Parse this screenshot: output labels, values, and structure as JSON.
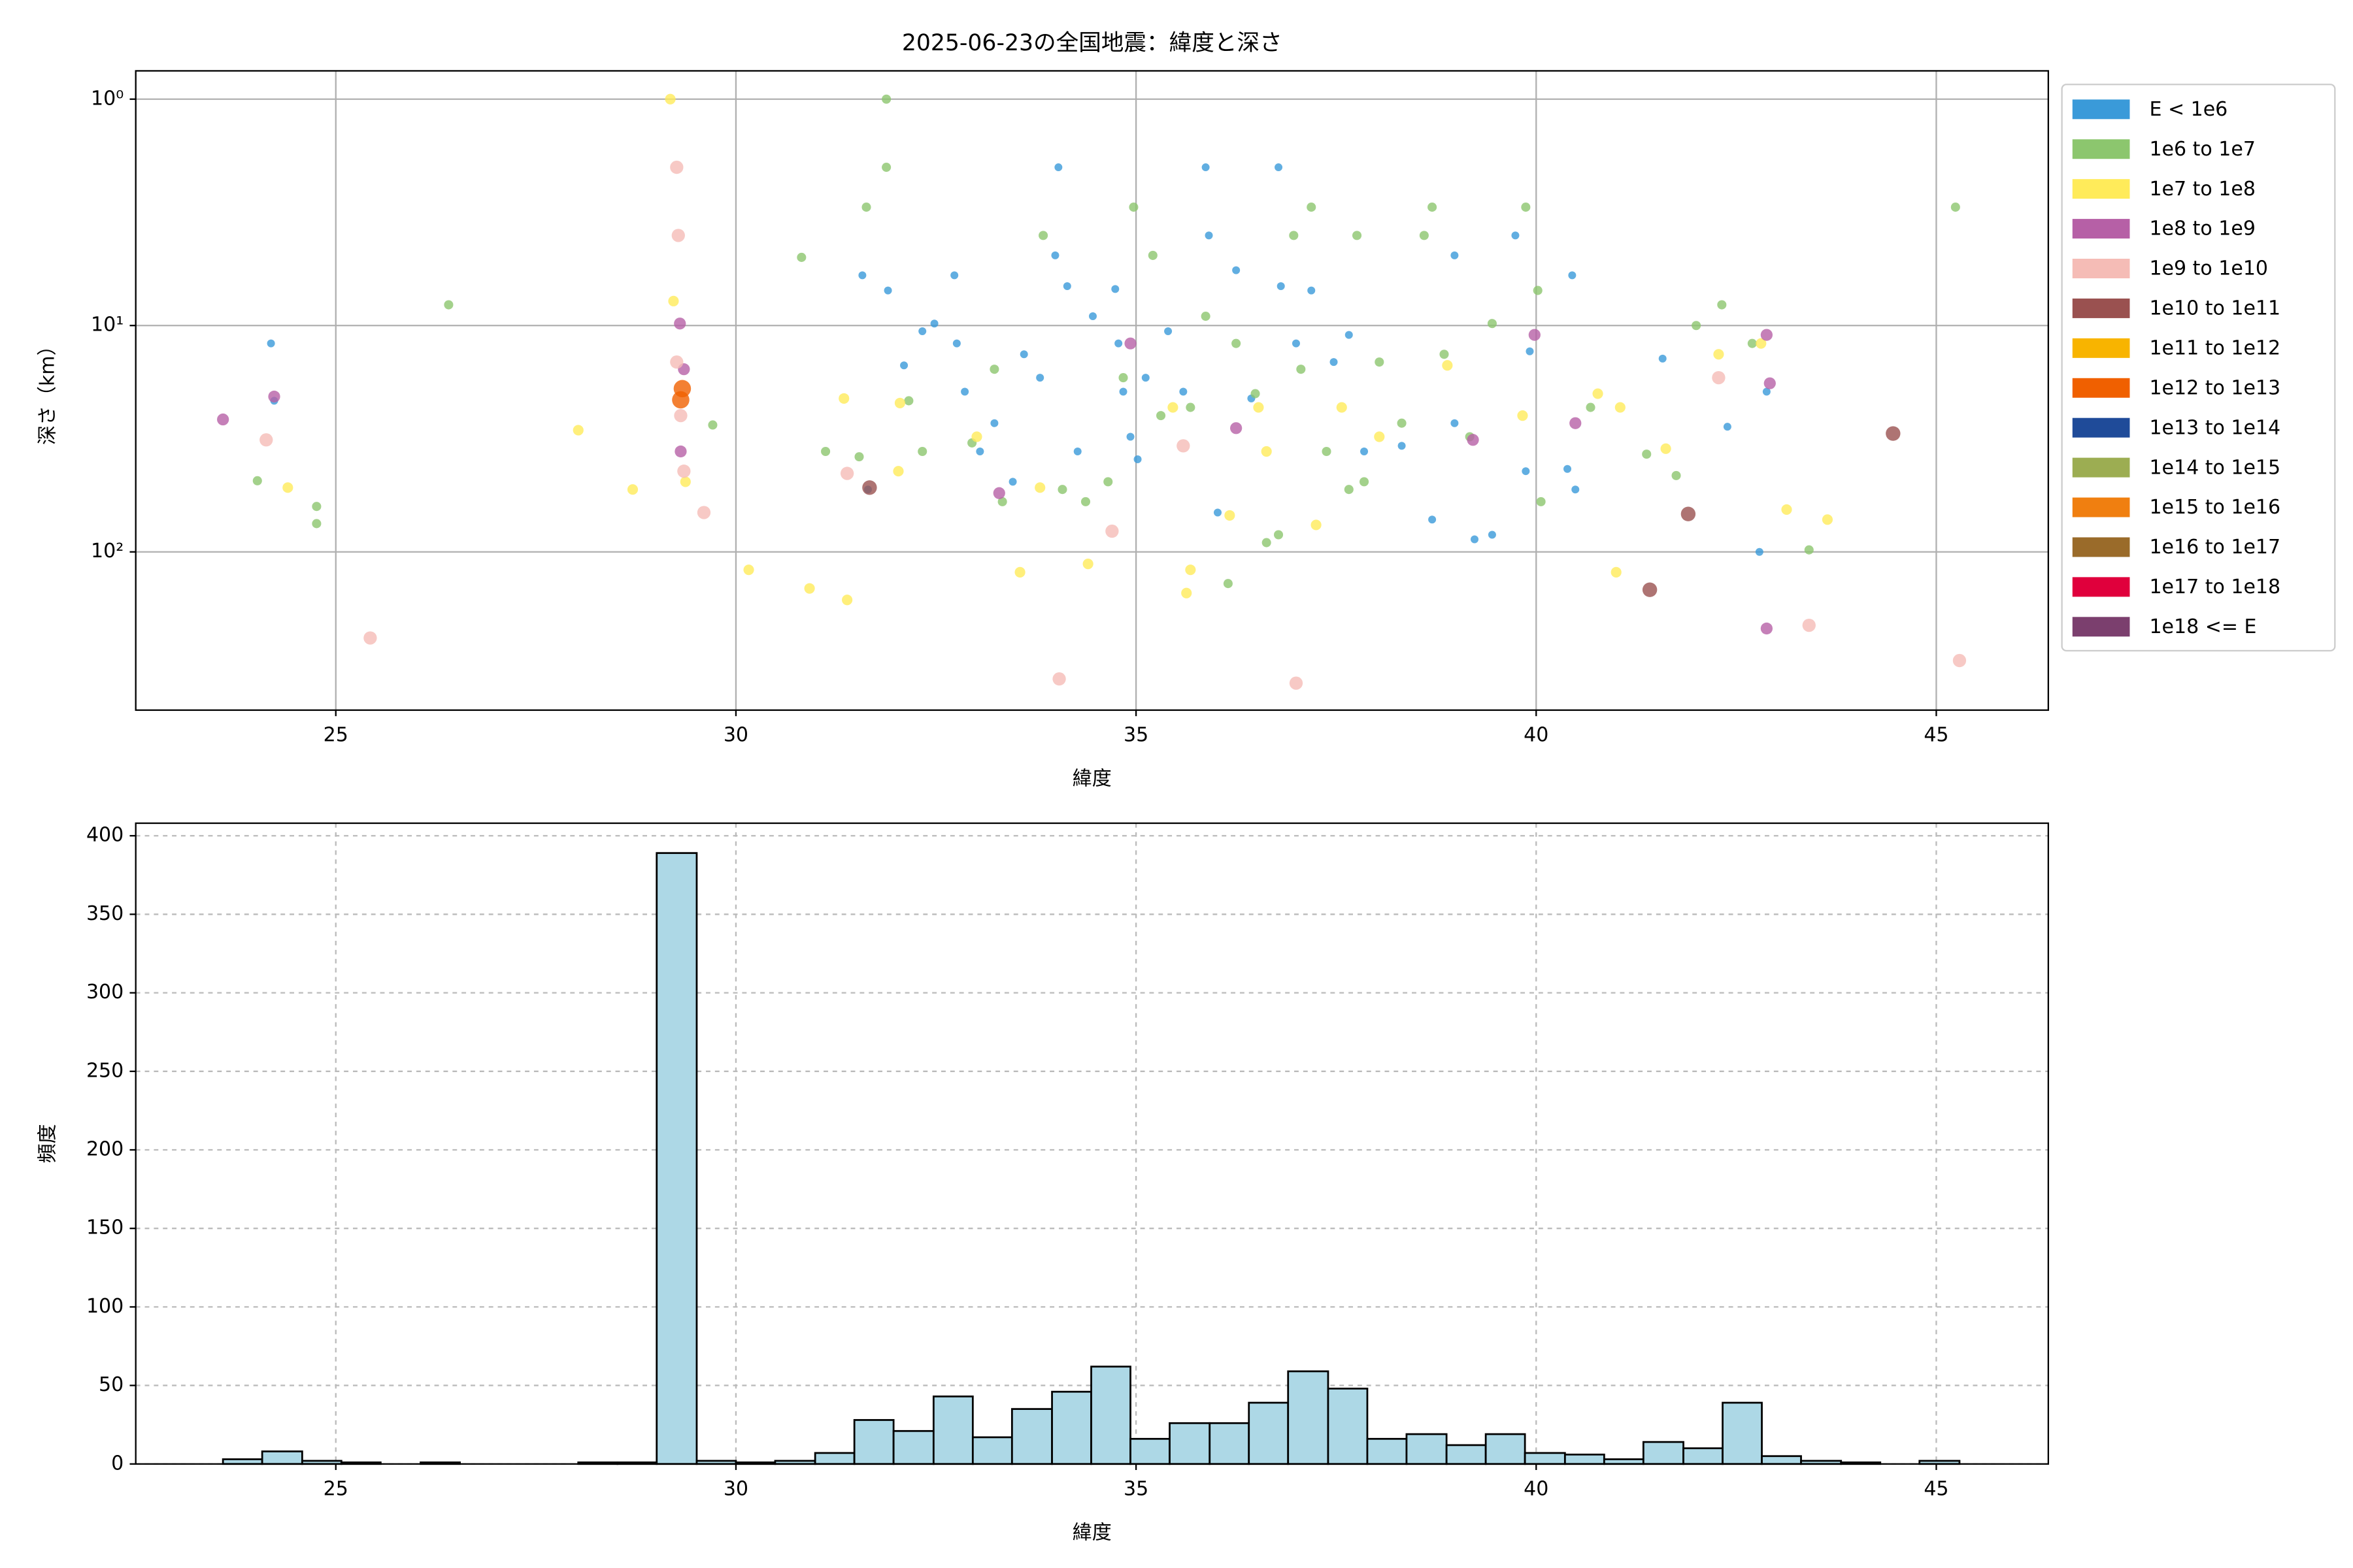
{
  "chart_data": [
    {
      "type": "scatter",
      "title": "2025-06-23の全国地震：緯度と深さ",
      "xlabel": "緯度",
      "ylabel": "深さ（km）",
      "xlim": [
        22.5,
        46.4
      ],
      "ylim": [
        500,
        0.75
      ],
      "yscale": "log",
      "xticks": [
        25,
        30,
        35,
        40,
        45
      ],
      "yticks": [
        {
          "value": 1,
          "label": "10⁰"
        },
        {
          "value": 10,
          "label": "10¹"
        },
        {
          "value": 100,
          "label": "10²"
        }
      ],
      "grid": "solid",
      "legend": "outside right",
      "series": [
        {
          "name": "E < 1e6",
          "color": "#3a9ad9",
          "x": [
            24.19,
            24.23,
            31.58,
            31.65,
            31.9,
            32.1,
            32.33,
            32.48,
            32.73,
            32.76,
            32.86,
            33.05,
            33.23,
            33.46,
            33.6,
            33.8,
            33.99,
            34.03,
            34.14,
            34.27,
            34.46,
            34.74,
            34.78,
            34.84,
            34.93,
            35.02,
            35.12,
            35.4,
            35.59,
            35.87,
            35.91,
            36.02,
            36.25,
            36.44,
            36.78,
            36.81,
            37.0,
            37.19,
            37.47,
            37.66,
            37.85,
            38.32,
            38.7,
            38.98,
            38.98,
            39.23,
            39.45,
            39.74,
            39.87,
            39.92,
            40.39,
            40.45,
            40.49,
            41.58,
            42.39,
            42.79,
            42.88
          ],
          "values": [
            12,
            21.5,
            6.0,
            53,
            7.0,
            15,
            10.6,
            9.8,
            6.0,
            12,
            19.6,
            36,
            27,
            49,
            13.4,
            17,
            4.9,
            2.0,
            6.7,
            36,
            9.1,
            6.9,
            12,
            19.6,
            31,
            39,
            17,
            10.6,
            19.6,
            2.0,
            4.0,
            67,
            5.7,
            21,
            2.0,
            6.7,
            12,
            7.0,
            14.5,
            11,
            36,
            34,
            72,
            4.9,
            27,
            88,
            84,
            4.0,
            44,
            13,
            43,
            6.0,
            53,
            14,
            28,
            100,
            19.6
          ]
        },
        {
          "name": "1e6 to 1e7",
          "color": "#8cc66e",
          "x": [
            24.02,
            24.76,
            24.76,
            26.41,
            29.71,
            30.82,
            31.12,
            31.54,
            31.63,
            31.88,
            31.88,
            32.16,
            32.33,
            32.95,
            33.23,
            33.33,
            33.84,
            34.08,
            34.37,
            34.65,
            34.84,
            34.97,
            35.21,
            35.31,
            35.68,
            35.87,
            36.15,
            36.25,
            36.49,
            36.63,
            36.78,
            36.97,
            37.06,
            37.19,
            37.38,
            37.66,
            37.76,
            37.85,
            38.04,
            38.32,
            38.6,
            38.7,
            38.85,
            39.17,
            39.45,
            39.87,
            40.02,
            40.06,
            40.68,
            41.38,
            41.75,
            42.0,
            42.32,
            42.7,
            43.41,
            45.24
          ],
          "values": [
            48.5,
            63,
            75,
            8.1,
            27.5,
            5.0,
            36,
            38,
            3.0,
            1.0,
            2.0,
            21.5,
            36,
            33,
            15.6,
            60,
            4.0,
            53,
            60,
            49,
            17,
            3.0,
            4.9,
            25,
            23,
            9.1,
            138,
            12,
            20,
            91,
            84,
            4.0,
            15.6,
            3.0,
            36,
            53,
            4.0,
            49,
            14.5,
            27,
            4.0,
            3.0,
            13.4,
            31,
            9.8,
            3.0,
            7.0,
            60,
            23,
            37,
            46,
            10,
            8.1,
            12,
            98,
            3.0
          ]
        },
        {
          "name": "1e7 to 1e8",
          "color": "#ffeb5a",
          "x": [
            24.4,
            28.03,
            28.71,
            29.18,
            29.22,
            29.37,
            30.16,
            30.92,
            31.35,
            31.39,
            32.05,
            32.03,
            33.01,
            33.55,
            33.8,
            34.4,
            35.46,
            35.63,
            35.68,
            36.17,
            36.53,
            36.63,
            37.25,
            37.57,
            38.04,
            38.89,
            39.83,
            40.77,
            41.0,
            41.05,
            41.62,
            42.28,
            42.81,
            43.13,
            43.64
          ],
          "values": [
            52,
            29,
            53,
            1.0,
            7.8,
            49,
            120,
            145,
            21,
            163,
            22,
            44,
            31,
            123,
            52,
            113,
            23,
            152,
            120,
            69,
            23,
            36,
            76,
            23,
            31,
            15,
            25,
            20,
            123,
            23,
            35,
            13.4,
            12,
            65,
            72
          ]
        },
        {
          "name": "1e8 to 1e9",
          "color": "#b660a6",
          "x": [
            23.59,
            24.23,
            29.3,
            29.31,
            29.35,
            33.29,
            34.93,
            36.25,
            39.21,
            39.98,
            40.49,
            42.88,
            42.88,
            42.92
          ],
          "values": [
            26,
            20.6,
            9.8,
            36,
            15.6,
            55,
            12,
            28.4,
            32,
            11,
            27,
            11,
            218,
            18
          ]
        },
        {
          "name": "1e9 to 1e10",
          "color": "#f5bcb6",
          "x": [
            24.13,
            25.43,
            29.26,
            29.28,
            29.26,
            29.31,
            29.35,
            29.6,
            31.39,
            34.7,
            34.04,
            35.59,
            37.0,
            42.28,
            43.41,
            45.29
          ],
          "values": [
            32,
            240,
            2.0,
            4.0,
            14.5,
            25,
            44,
            67,
            45,
            81,
            364,
            34,
            380,
            17,
            211,
            302
          ]
        },
        {
          "name": "1e10 to 1e11",
          "color": "#9a5150",
          "x": [
            31.67,
            41.42,
            41.9,
            44.46
          ],
          "values": [
            52,
            147,
            68,
            30
          ]
        },
        {
          "name": "1e11 to 1e12",
          "color": "#f8b400",
          "x": [],
          "values": []
        },
        {
          "name": "1e12 to 1e13",
          "color": "#f06000",
          "x": [
            29.31,
            29.33
          ],
          "values": [
            21.3,
            19
          ]
        },
        {
          "name": "1e13 to 1e14",
          "color": "#1f4b99",
          "x": [],
          "values": []
        },
        {
          "name": "1e14 to 1e15",
          "color": "#9cad52",
          "x": [],
          "values": []
        },
        {
          "name": "1e15 to 1e16",
          "color": "#f07f10",
          "x": [],
          "values": []
        },
        {
          "name": "1e16 to 1e17",
          "color": "#9a6b2a",
          "x": [],
          "values": []
        },
        {
          "name": "1e17 to 1e18",
          "color": "#e0003c",
          "x": [],
          "values": []
        },
        {
          "name": "1e18 <= E",
          "color": "#7b3f6e",
          "x": [],
          "values": []
        }
      ]
    },
    {
      "type": "histogram",
      "xlabel": "緯度",
      "ylabel": "頻度",
      "color": "#add8e6",
      "edgecolor": "#000000",
      "xlim": [
        22.5,
        46.4
      ],
      "ylim": [
        0,
        408
      ],
      "xticks": [
        25,
        30,
        35,
        40,
        45
      ],
      "yticks": [
        0,
        50,
        100,
        150,
        200,
        250,
        300,
        350,
        400
      ],
      "grid": "dashed",
      "bins": [
        23.59,
        24.08,
        24.58,
        25.07,
        25.56,
        26.06,
        26.55,
        27.04,
        27.53,
        28.03,
        28.52,
        29.01,
        29.51,
        30.0,
        30.49,
        30.99,
        31.48,
        31.97,
        32.47,
        32.96,
        33.45,
        33.95,
        34.44,
        34.93,
        35.42,
        35.92,
        36.41,
        36.9,
        37.4,
        37.89,
        38.38,
        38.88,
        39.37,
        39.86,
        40.36,
        40.85,
        41.34,
        41.84,
        42.33,
        42.82,
        43.31,
        43.81,
        44.3,
        44.79,
        45.29
      ],
      "values": [
        3,
        8,
        2,
        1,
        0,
        1,
        0,
        0,
        0,
        1,
        1,
        389,
        2,
        1,
        2,
        7,
        28,
        21,
        43,
        17,
        35,
        46,
        62,
        16,
        26,
        26,
        39,
        59,
        48,
        16,
        19,
        12,
        19,
        7,
        6,
        3,
        14,
        10,
        39,
        5,
        2,
        1,
        0,
        2
      ]
    }
  ]
}
